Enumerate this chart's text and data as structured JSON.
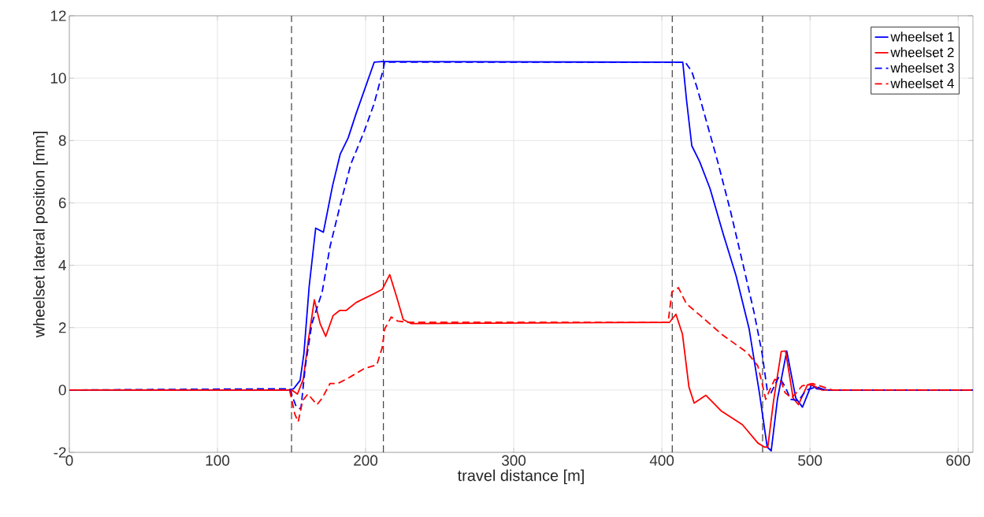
{
  "chart_data": {
    "type": "line",
    "xlabel": "travel distance [m]",
    "ylabel": "wheelset lateral position [mm]",
    "xlim": [
      0,
      610
    ],
    "ylim": [
      -2,
      12
    ],
    "xticks": [
      0,
      100,
      200,
      300,
      400,
      500,
      600
    ],
    "yticks": [
      -2,
      0,
      2,
      4,
      6,
      8,
      10,
      12
    ],
    "grid": true,
    "legend": "top right",
    "marker": "none",
    "series": [
      {
        "name": "wheelset 1",
        "color": "#0000ff",
        "line_style": "solid",
        "x": [
          0,
          148,
          151.4,
          155.8,
          158.4,
          161.9,
          166.3,
          171.5,
          177.7,
          182.9,
          188.2,
          193.5,
          205.8,
          211,
          414.1,
          416.7,
          420.2,
          425.5,
          432.5,
          441.3,
          450.1,
          458.9,
          465.8,
          471.1,
          473.8,
          478,
          484.3,
          490.4,
          494.9,
          501,
          504.5,
          513,
          610
        ],
        "values": [
          0,
          0,
          0.04,
          0.31,
          1.19,
          3.32,
          5.19,
          5.06,
          6.55,
          7.57,
          8.08,
          8.85,
          10.51,
          10.53,
          10.51,
          9.27,
          7.83,
          7.32,
          6.46,
          5.02,
          3.66,
          1.96,
          -0.08,
          -1.83,
          -1.95,
          -0.3,
          1.25,
          -0.26,
          -0.55,
          0.17,
          0.04,
          0,
          0
        ]
      },
      {
        "name": "wheelset 2",
        "color": "#ff0000",
        "line_style": "solid",
        "x": [
          0,
          150,
          154,
          157.9,
          161.4,
          165.4,
          169.3,
          173.1,
          178,
          182.4,
          186.8,
          193.8,
          206.1,
          211.3,
          216.3,
          221,
          225.4,
          230.7,
          405.1,
          409.5,
          413.9,
          418.3,
          421.8,
          429.7,
          440.3,
          454.3,
          464.8,
          469.2,
          471.5,
          475.4,
          480.6,
          483.5,
          488.6,
          492.2,
          498.3,
          502,
          508,
          515,
          610
        ],
        "values": [
          0,
          0,
          -0.13,
          0.34,
          1.61,
          2.89,
          2.13,
          1.72,
          2.38,
          2.55,
          2.55,
          2.81,
          3.1,
          3.23,
          3.7,
          2.98,
          2.26,
          2.13,
          2.17,
          2.43,
          1.79,
          0.09,
          -0.42,
          -0.17,
          -0.68,
          -1.11,
          -1.7,
          -1.83,
          -1.83,
          -0.34,
          1.24,
          1.25,
          -0.26,
          -0.47,
          0.17,
          0.15,
          0,
          0,
          0
        ]
      },
      {
        "name": "wheelset 3",
        "color": "#0000ff",
        "line_style": "dashed",
        "x": [
          0,
          148.7,
          153.1,
          156.3,
          159.3,
          163.7,
          170.7,
          176,
          183,
          190,
          198.8,
          205.8,
          212,
          212.8,
          415.8,
          420.2,
          423.7,
          430.7,
          437.7,
          446.5,
          455.3,
          462.3,
          467.6,
          471.1,
          473.7,
          479,
          483.4,
          486.9,
          492.2,
          497.5,
          504.4,
          510,
          610
        ],
        "values": [
          0,
          0.04,
          -0.53,
          -0.61,
          0.76,
          2.12,
          3.15,
          4.6,
          5.96,
          7.24,
          8.26,
          9.19,
          10.3,
          10.51,
          10.51,
          10.21,
          9.7,
          8.51,
          7.32,
          5.7,
          3.92,
          2.47,
          1.19,
          0,
          -0.09,
          0.43,
          0.09,
          -0.3,
          -0.34,
          0,
          0.1,
          0,
          0
        ]
      },
      {
        "name": "wheelset 4",
        "color": "#ff0000",
        "line_style": "dashed",
        "x": [
          0,
          148.7,
          152.2,
          154.5,
          157.5,
          161,
          167.2,
          170.7,
          176,
          181.3,
          188.3,
          198.8,
          207.6,
          211.2,
          212.9,
          217.3,
          221.7,
          228.7,
          404.2,
          406.8,
          411.2,
          416.5,
          426.1,
          440.3,
          457.8,
          464.8,
          467.4,
          470.1,
          473.6,
          476.2,
          480.6,
          483.2,
          487.6,
          494.6,
          501.6,
          515,
          610
        ],
        "values": [
          0,
          0,
          -0.77,
          -1.02,
          -0.34,
          -0.13,
          -0.47,
          -0.26,
          0.21,
          0.21,
          0.38,
          0.68,
          0.81,
          1.36,
          1.96,
          2.34,
          2.21,
          2.17,
          2.17,
          3.15,
          3.28,
          2.77,
          2.38,
          1.79,
          1.19,
          0.77,
          0.26,
          -0.3,
          0.09,
          0.34,
          0.26,
          -0.09,
          -0.26,
          0.13,
          0.21,
          0,
          0
        ]
      }
    ],
    "ref_lines": [
      {
        "axis": "x",
        "value": 150,
        "color": "#404040",
        "line_style": "dashed"
      },
      {
        "axis": "x",
        "value": 212,
        "color": "#404040",
        "line_style": "dashed"
      },
      {
        "axis": "x",
        "value": 407,
        "color": "#404040",
        "line_style": "dashed"
      },
      {
        "axis": "x",
        "value": 468,
        "color": "#404040",
        "line_style": "dashed"
      }
    ]
  }
}
